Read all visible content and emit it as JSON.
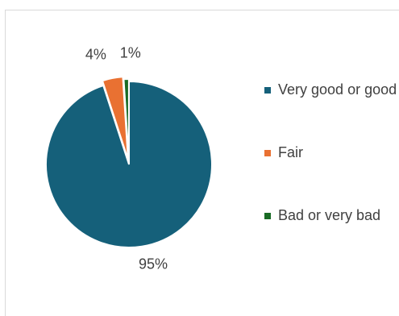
{
  "chart_data": {
    "type": "pie",
    "categories": [
      "Very good or good",
      "Fair",
      "Bad or very bad"
    ],
    "values": [
      95,
      4,
      1
    ],
    "data_labels": [
      "95%",
      "4%",
      "1%"
    ],
    "colors": [
      "#15607a",
      "#e97132",
      "#196b24"
    ],
    "exploded_slices": [
      "Fair",
      "Bad or very bad"
    ],
    "legend_position": "right",
    "title": ""
  }
}
